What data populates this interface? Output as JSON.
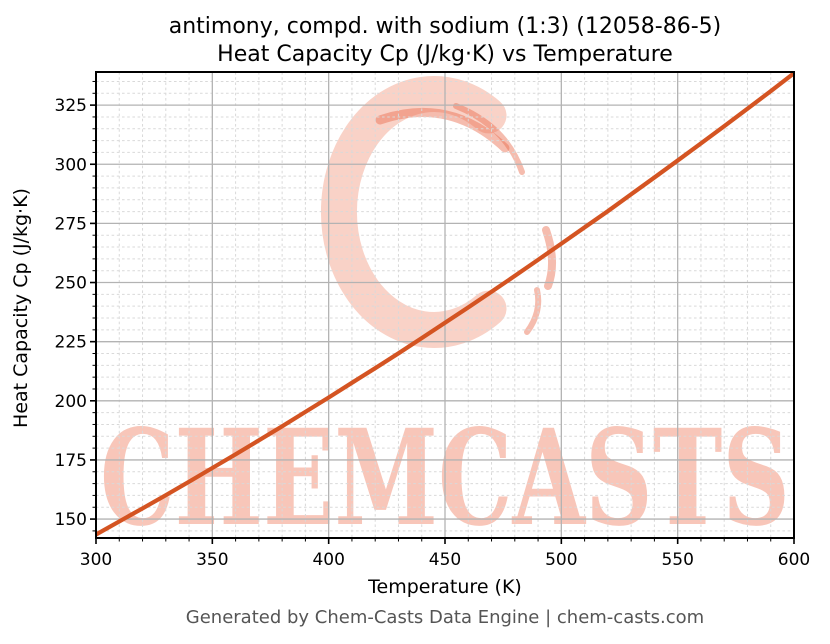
{
  "figure": {
    "title_line1": "antimony, compd. with sodium (1:3) (12058-86-5)",
    "title_line2": "Heat Capacity Cp (J/kg·K) vs Temperature",
    "footer": "Generated by Chem-Casts Data Engine | chem-casts.com",
    "background": "#ffffff"
  },
  "watermark": {
    "text": "CHEMCASTS",
    "logo": "brush-ring-c-logo",
    "text_color": "rgba(238,120,88,0.42)",
    "ring_color": "rgba(239,129,99,0.36)",
    "accent_color": "rgba(233,106,76,0.45)"
  },
  "colors": {
    "line": "#d45422",
    "grid_major": "#b3b3b3",
    "grid_minor": "#d9d9d9",
    "axis": "#000000",
    "footer_text": "#555555"
  },
  "chart_data": {
    "type": "line",
    "title": "antimony, compd. with sodium (1:3) (12058-86-5)\nHeat Capacity Cp (J/kg·K) vs Temperature",
    "xlabel": "Temperature (K)",
    "ylabel": "Heat Capacity Cp (J/kg·K)",
    "xlim": [
      300,
      600
    ],
    "ylim": [
      142,
      339
    ],
    "x_major_ticks": [
      300,
      350,
      400,
      450,
      500,
      550,
      600
    ],
    "y_major_ticks": [
      150,
      175,
      200,
      225,
      250,
      275,
      300,
      325
    ],
    "x_minor_step": 10,
    "y_minor_step": 5,
    "grid": true,
    "legend": false,
    "series": [
      {
        "name": "Heat Capacity Cp (J/kg·K)",
        "color": "#d45422",
        "x": [
          300,
          310,
          320,
          330,
          340,
          350,
          360,
          370,
          380,
          390,
          400,
          410,
          420,
          430,
          440,
          450,
          460,
          470,
          480,
          490,
          500,
          510,
          520,
          530,
          540,
          550,
          560,
          570,
          580,
          590,
          600
        ],
        "y": [
          143.5,
          149.0,
          154.5,
          160.1,
          165.8,
          171.6,
          177.4,
          183.3,
          189.2,
          195.3,
          201.4,
          207.6,
          213.8,
          220.1,
          226.5,
          233.0,
          239.5,
          246.1,
          252.8,
          259.6,
          266.4,
          273.3,
          280.2,
          287.3,
          294.4,
          301.6,
          308.8,
          316.1,
          323.5,
          330.9,
          338.5
        ]
      }
    ]
  }
}
